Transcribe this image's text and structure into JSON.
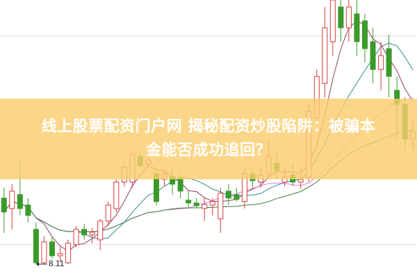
{
  "title": {
    "line1": "线上股票配资门户网 揭秘配资炒股陷阱：被骗本",
    "line2": "金能否成功追回？"
  },
  "chart_data": {
    "type": "candlestick",
    "ylim": [
      7.71,
      15.71
    ],
    "grid": "dotted horizontal",
    "colors": {
      "up": "#d93a3a",
      "down": "#3a9a2a",
      "ma5": "#8b3a6b",
      "ma10": "#2a8a8a",
      "ma20": "#e07ae0",
      "ma30": "#3d7a3d",
      "banner": "#f8cd6e"
    },
    "annotation": {
      "text": "8.11",
      "candle_index": 4
    },
    "candles": [
      [
        10.01,
        10.31,
        9.01,
        9.61
      ],
      [
        9.71,
        10.41,
        9.11,
        10.21
      ],
      [
        10.11,
        11.11,
        9.51,
        9.71
      ],
      [
        9.81,
        10.01,
        9.31,
        9.51
      ],
      [
        9.11,
        9.31,
        8.11,
        8.15
      ],
      [
        8.15,
        8.91,
        8.11,
        8.75
      ],
      [
        8.75,
        8.91,
        8.27,
        8.35
      ],
      [
        8.35,
        8.61,
        8.15,
        8.41
      ],
      [
        8.15,
        8.81,
        8.11,
        8.71
      ],
      [
        8.67,
        9.21,
        8.59,
        9.11
      ],
      [
        9.11,
        9.27,
        8.81,
        8.95
      ],
      [
        8.95,
        9.15,
        8.71,
        9.03
      ],
      [
        8.81,
        9.41,
        8.51,
        9.35
      ],
      [
        9.35,
        9.91,
        9.21,
        9.81
      ],
      [
        9.71,
        10.55,
        9.61,
        10.47
      ],
      [
        10.47,
        11.07,
        10.35,
        10.91
      ],
      [
        10.47,
        11.35,
        10.31,
        11.27
      ],
      [
        11.21,
        11.27,
        10.87,
        10.95
      ],
      [
        10.99,
        11.21,
        10.91,
        11.11
      ],
      [
        10.71,
        10.81,
        9.79,
        9.91
      ],
      [
        10.55,
        10.81,
        10.35,
        10.71
      ],
      [
        10.63,
        10.87,
        10.11,
        10.41
      ],
      [
        10.61,
        10.71,
        10.01,
        10.21
      ],
      [
        9.95,
        10.21,
        9.71,
        9.87
      ],
      [
        9.87,
        10.01,
        9.71,
        9.79
      ],
      [
        9.71,
        10.01,
        9.35,
        9.83
      ],
      [
        9.81,
        10.01,
        9.51,
        9.91
      ],
      [
        9.41,
        10.31,
        9.01,
        10.15
      ],
      [
        10.21,
        10.41,
        9.81,
        10.01
      ],
      [
        10.11,
        10.31,
        9.91,
        9.97
      ],
      [
        9.91,
        10.91,
        9.71,
        10.71
      ],
      [
        10.71,
        10.91,
        10.31,
        10.51
      ],
      [
        10.47,
        10.91,
        10.31,
        10.67
      ],
      [
        10.71,
        11.71,
        10.61,
        11.21
      ],
      [
        11.01,
        11.31,
        10.55,
        10.81
      ],
      [
        10.47,
        10.91,
        10.35,
        10.61
      ],
      [
        10.67,
        11.01,
        10.35,
        10.47
      ],
      [
        10.47,
        10.91,
        10.27,
        10.55
      ],
      [
        10.61,
        12.71,
        10.47,
        12.51
      ],
      [
        12.31,
        13.71,
        12.11,
        13.51
      ],
      [
        13.31,
        15.51,
        12.91,
        14.91
      ],
      [
        14.51,
        15.71,
        14.11,
        15.71
      ],
      [
        15.51,
        15.71,
        14.51,
        14.91
      ],
      [
        14.91,
        15.71,
        14.51,
        15.51
      ],
      [
        15.31,
        15.71,
        14.11,
        14.51
      ],
      [
        15.11,
        15.31,
        13.91,
        14.31
      ],
      [
        14.51,
        14.91,
        13.31,
        13.71
      ],
      [
        13.71,
        14.51,
        13.11,
        14.11
      ],
      [
        14.31,
        14.71,
        12.91,
        13.51
      ],
      [
        13.11,
        13.51,
        11.71,
        12.71
      ],
      [
        12.71,
        12.91,
        11.41,
        11.71
      ],
      [
        11.71,
        12.31,
        11.41,
        11.91
      ]
    ]
  }
}
